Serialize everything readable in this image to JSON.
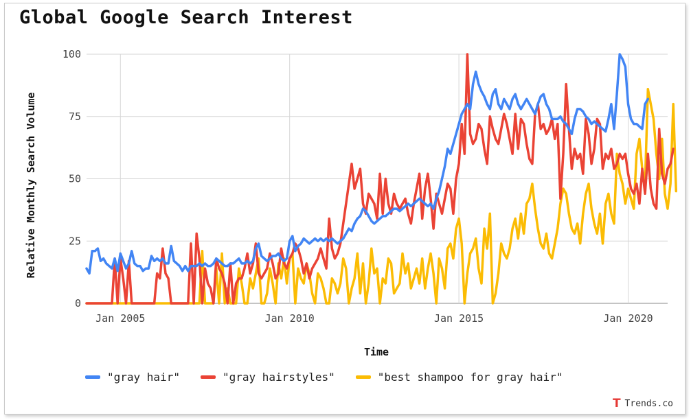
{
  "chart_data": {
    "type": "line",
    "title": "Global Google Search Interest",
    "xlabel": "Time",
    "ylabel": "Relative Monthly Search Volume",
    "ylim": [
      0,
      100
    ],
    "xlim": [
      "2004-01",
      "2021-03"
    ],
    "yticks": [
      0,
      25,
      50,
      75,
      100
    ],
    "xticks": [
      {
        "label": "Jan 2005",
        "date": "2005-01"
      },
      {
        "label": "Jan 2010",
        "date": "2010-01"
      },
      {
        "label": "Jan 2015",
        "date": "2015-01"
      },
      {
        "label": "Jan 2020",
        "date": "2020-01"
      }
    ],
    "grid": true,
    "legend_position": "bottom",
    "start_month": "2004-01",
    "series": [
      {
        "name": "\"gray hair\"",
        "color": "#4285f4",
        "values": [
          14,
          12,
          21,
          21,
          22,
          17,
          18,
          16,
          15,
          14,
          18,
          13,
          20,
          17,
          14,
          16,
          21,
          16,
          15,
          15,
          13,
          14,
          14,
          19,
          17,
          18,
          17,
          18,
          16,
          16,
          23,
          17,
          16,
          15,
          13,
          15,
          13,
          15,
          15,
          15,
          16,
          15,
          16,
          15,
          15,
          16,
          18,
          17,
          16,
          15,
          15,
          16,
          16,
          17,
          18,
          16,
          16,
          17,
          16,
          17,
          22,
          24,
          19,
          18,
          17,
          18,
          19,
          19,
          20,
          18,
          17,
          18,
          25,
          27,
          21,
          23,
          24,
          26,
          25,
          24,
          25,
          26,
          25,
          26,
          25,
          26,
          25,
          26,
          25,
          24,
          25,
          26,
          28,
          30,
          29,
          32,
          34,
          35,
          38,
          37,
          35,
          33,
          32,
          33,
          34,
          35,
          35,
          36,
          37,
          38,
          38,
          37,
          38,
          39,
          40,
          39,
          40,
          41,
          42,
          41,
          40,
          39,
          40,
          38,
          42,
          45,
          50,
          55,
          62,
          60,
          64,
          68,
          72,
          76,
          78,
          80,
          78,
          88,
          93,
          88,
          85,
          83,
          80,
          78,
          84,
          86,
          80,
          78,
          82,
          80,
          78,
          82,
          84,
          80,
          78,
          80,
          82,
          80,
          78,
          76,
          80,
          83,
          84,
          80,
          78,
          74,
          74,
          74,
          75,
          73,
          72,
          70,
          68,
          74,
          78,
          78,
          77,
          75,
          74,
          72,
          73,
          72,
          71,
          70,
          69,
          74,
          80,
          70,
          84,
          100,
          98,
          95,
          80,
          74,
          72,
          72,
          71,
          70,
          80,
          82
        ]
      },
      {
        "name": "\"gray hairstyles\"",
        "color": "#ea4335",
        "values": [
          0,
          0,
          0,
          0,
          0,
          0,
          0,
          0,
          0,
          0,
          18,
          0,
          18,
          10,
          0,
          17,
          0,
          0,
          0,
          0,
          0,
          0,
          0,
          0,
          0,
          12,
          10,
          22,
          12,
          10,
          0,
          0,
          0,
          0,
          0,
          0,
          0,
          24,
          0,
          28,
          18,
          0,
          14,
          8,
          6,
          0,
          18,
          14,
          12,
          8,
          0,
          16,
          0,
          8,
          10,
          10,
          14,
          20,
          12,
          16,
          24,
          12,
          10,
          12,
          14,
          20,
          16,
          10,
          12,
          22,
          16,
          14,
          18,
          20,
          24,
          22,
          18,
          12,
          16,
          10,
          14,
          16,
          18,
          22,
          18,
          14,
          34,
          22,
          18,
          20,
          24,
          32,
          40,
          48,
          56,
          46,
          50,
          54,
          40,
          36,
          44,
          42,
          40,
          34,
          52,
          36,
          50,
          40,
          36,
          44,
          40,
          38,
          40,
          42,
          36,
          32,
          40,
          46,
          52,
          34,
          46,
          52,
          42,
          30,
          44,
          40,
          36,
          42,
          48,
          46,
          36,
          50,
          56,
          72,
          60,
          100,
          68,
          64,
          66,
          72,
          70,
          62,
          56,
          75,
          70,
          66,
          64,
          70,
          76,
          72,
          66,
          60,
          76,
          62,
          74,
          72,
          64,
          58,
          56,
          76,
          80,
          70,
          72,
          68,
          70,
          74,
          66,
          72,
          42,
          60,
          88,
          70,
          54,
          62,
          58,
          60,
          52,
          74,
          68,
          56,
          62,
          74,
          72,
          54,
          60,
          58,
          62,
          54,
          56,
          60,
          58,
          60,
          52,
          46,
          44,
          48,
          40,
          54,
          44,
          60,
          46,
          40,
          38,
          70,
          52,
          48,
          54,
          56,
          62
        ]
      },
      {
        "name": "\"best shampoo for gray hair\"",
        "color": "#fbbc04",
        "values": [
          0,
          0,
          0,
          0,
          0,
          0,
          0,
          0,
          0,
          0,
          0,
          0,
          0,
          0,
          0,
          0,
          0,
          0,
          0,
          0,
          0,
          0,
          0,
          0,
          0,
          0,
          0,
          0,
          0,
          0,
          0,
          0,
          0,
          0,
          0,
          0,
          0,
          0,
          0,
          0,
          0,
          21,
          0,
          0,
          0,
          0,
          14,
          0,
          20,
          0,
          6,
          0,
          0,
          0,
          14,
          8,
          0,
          0,
          10,
          6,
          12,
          18,
          0,
          0,
          4,
          14,
          8,
          0,
          16,
          10,
          18,
          8,
          18,
          20,
          0,
          14,
          10,
          8,
          16,
          12,
          4,
          0,
          12,
          10,
          6,
          0,
          0,
          10,
          8,
          4,
          8,
          18,
          14,
          0,
          6,
          10,
          20,
          4,
          16,
          0,
          8,
          22,
          12,
          14,
          0,
          10,
          8,
          18,
          16,
          4,
          6,
          8,
          20,
          12,
          16,
          6,
          10,
          14,
          8,
          18,
          6,
          14,
          20,
          12,
          0,
          18,
          14,
          6,
          22,
          24,
          18,
          30,
          34,
          24,
          0,
          12,
          20,
          22,
          26,
          14,
          8,
          30,
          22,
          36,
          0,
          4,
          12,
          24,
          20,
          18,
          22,
          30,
          34,
          26,
          36,
          28,
          40,
          42,
          48,
          38,
          30,
          24,
          22,
          28,
          20,
          18,
          24,
          30,
          40,
          46,
          44,
          36,
          30,
          28,
          32,
          24,
          36,
          44,
          48,
          38,
          32,
          28,
          36,
          24,
          40,
          44,
          36,
          32,
          60,
          52,
          48,
          40,
          46,
          42,
          38,
          60,
          66,
          54,
          48,
          86,
          80,
          74,
          60,
          50,
          66,
          44,
          38,
          48,
          80,
          45
        ]
      }
    ]
  },
  "brand": {
    "name": "Trends.co",
    "logo_glyph": "T"
  }
}
